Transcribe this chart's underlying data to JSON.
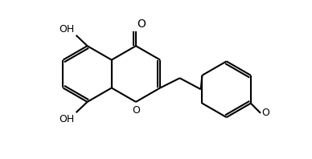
{
  "bg_color": "#ffffff",
  "line_color": "#000000",
  "line_width": 1.5,
  "font_size": 9,
  "fig_width": 3.88,
  "fig_height": 1.98,
  "xlim": [
    -0.3,
    8.2
  ],
  "ylim": [
    -2.8,
    2.8
  ]
}
